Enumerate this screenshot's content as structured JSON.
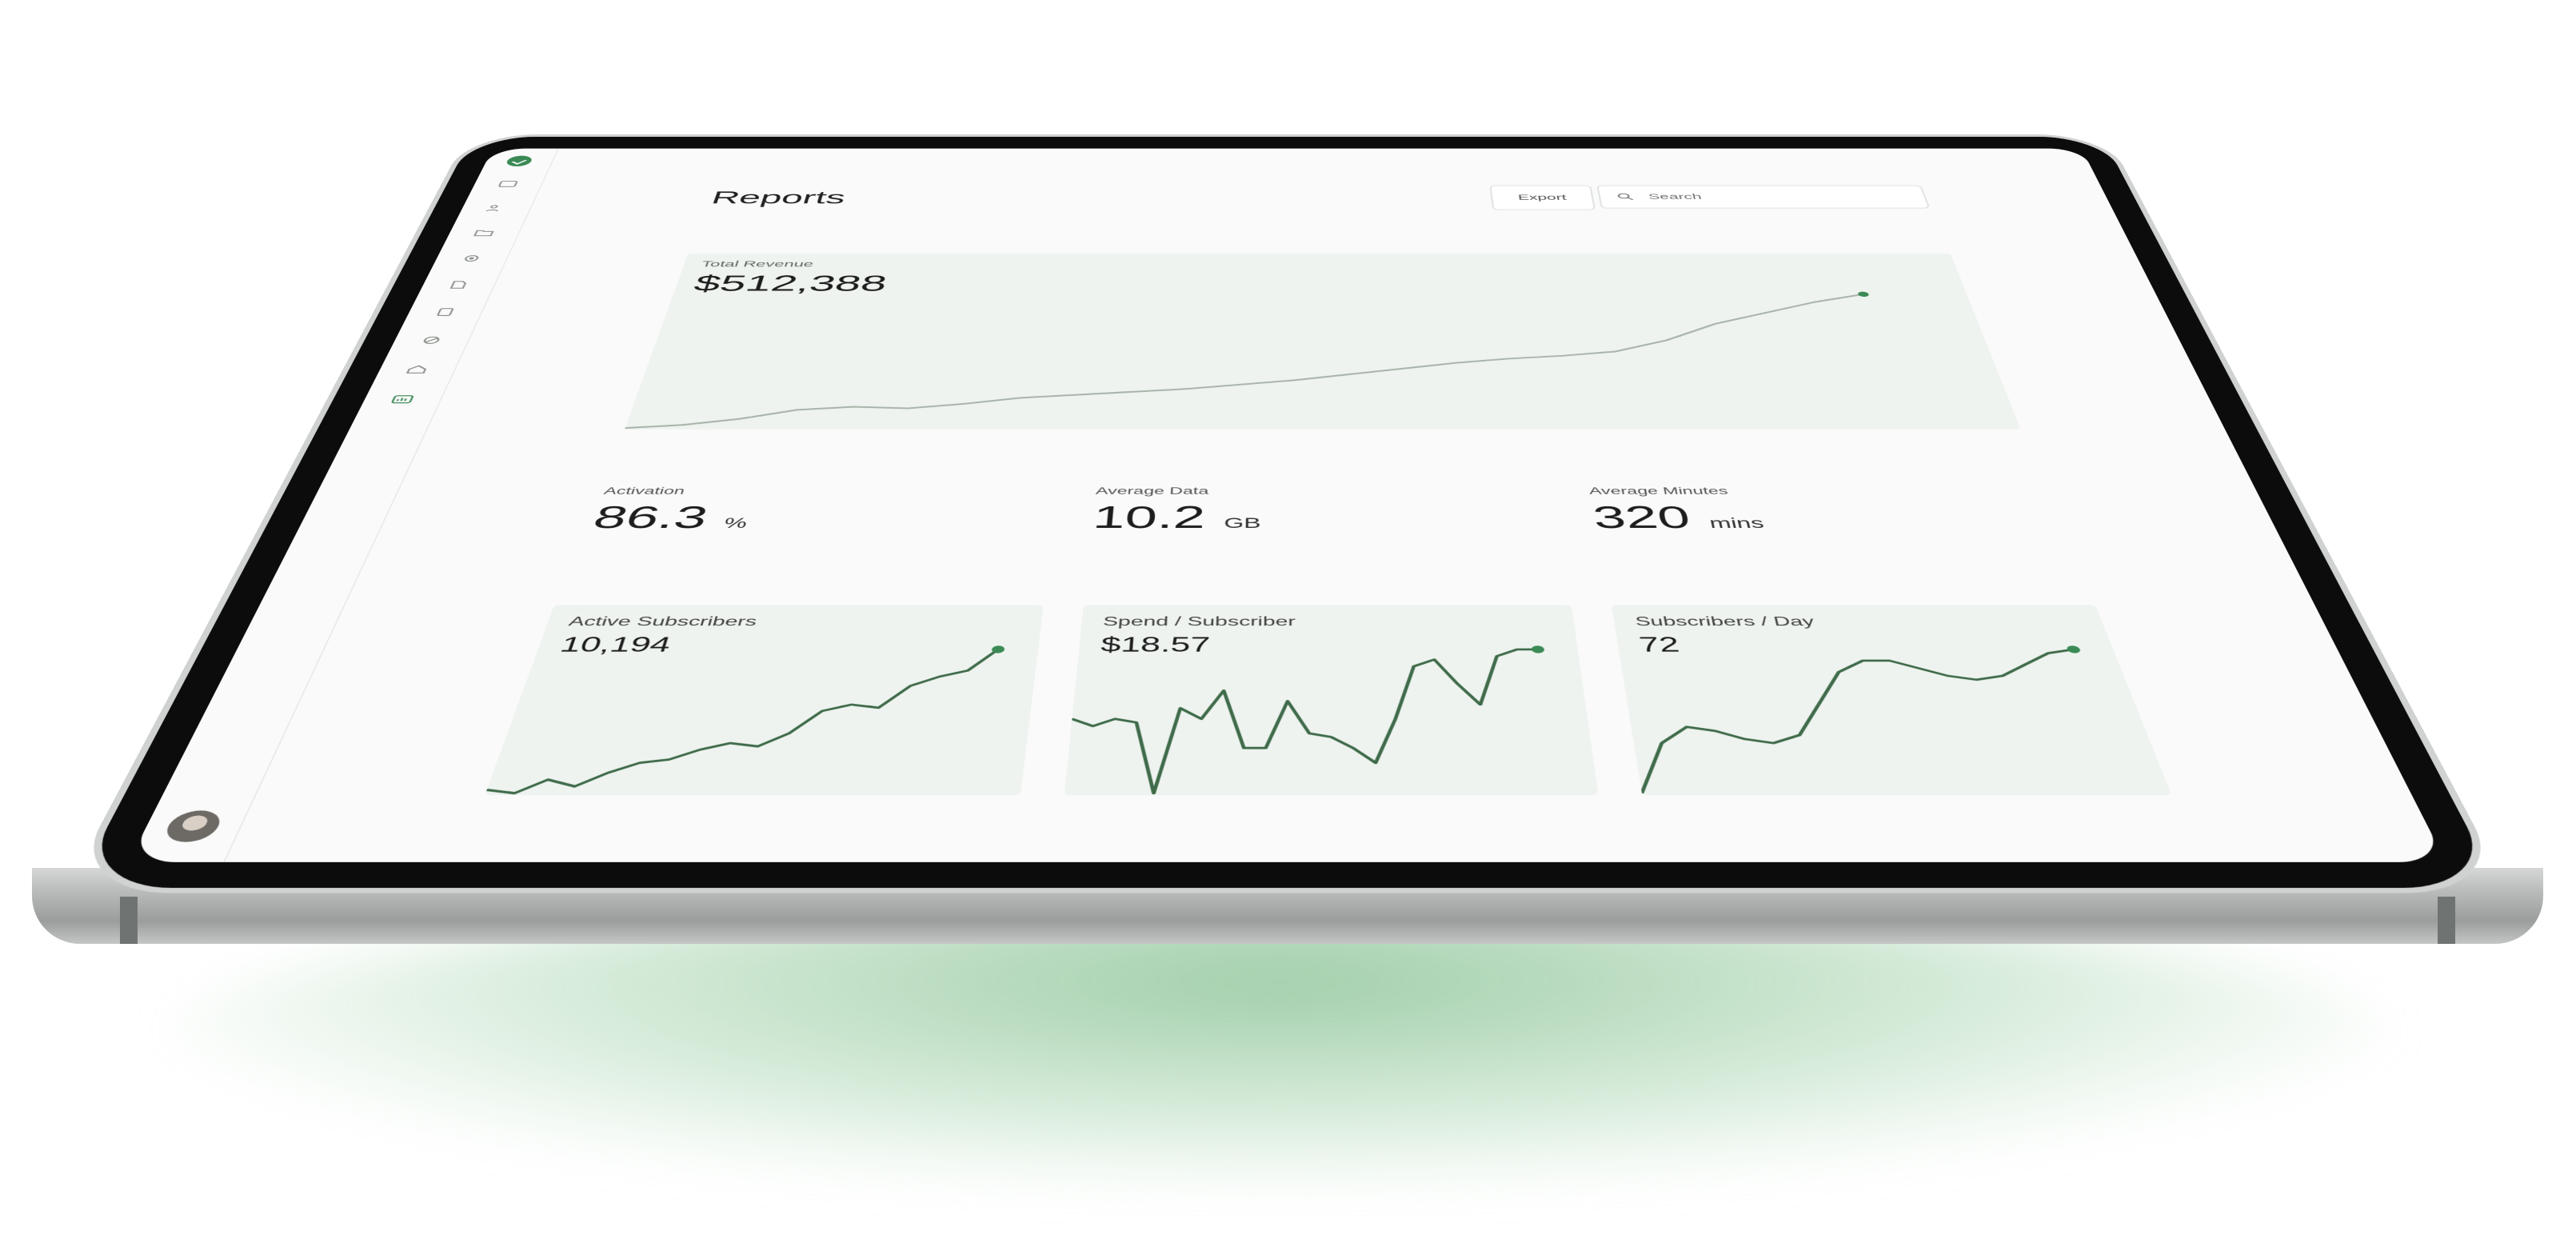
{
  "sidebar": {
    "logo_icon": "check-logo-icon",
    "items": [
      {
        "icon": "inbox-icon"
      },
      {
        "icon": "users-icon"
      },
      {
        "icon": "folder-icon"
      },
      {
        "icon": "settings-icon"
      },
      {
        "icon": "document-icon"
      },
      {
        "icon": "file-icon"
      },
      {
        "icon": "globe-icon"
      },
      {
        "icon": "home-icon"
      },
      {
        "icon": "chart-icon",
        "active": true
      }
    ],
    "avatar_icon": "user-avatar"
  },
  "header": {
    "title": "Reports",
    "export_label": "Export",
    "search_placeholder": "Search"
  },
  "colors": {
    "accent": "#3b8a55",
    "card_bg": "#eef3ef",
    "line_muted": "#a9b4aa",
    "line_dark": "#3f6b4a"
  },
  "revenue": {
    "label": "Total Revenue",
    "value": "$512,388"
  },
  "metrics": [
    {
      "label": "Activation",
      "value": "86.3",
      "unit": "%"
    },
    {
      "label": "Average Data",
      "value": "10.2",
      "unit": "GB"
    },
    {
      "label": "Average Minutes",
      "value": "320",
      "unit": "mins"
    }
  ],
  "cards": [
    {
      "label": "Active Subscribers",
      "value": "10,194"
    },
    {
      "label": "Spend / Subscriber",
      "value": "$18.57"
    },
    {
      "label": "Subscribers / Day",
      "value": "72"
    }
  ],
  "chart_data": [
    {
      "type": "line",
      "name_ref": "revenue",
      "values": [
        0,
        1,
        3,
        6,
        7,
        6.5,
        8,
        10,
        11,
        12,
        13,
        14.5,
        16,
        18,
        20,
        22,
        23.5,
        24.5,
        26,
        30,
        36,
        40,
        44,
        47
      ]
    },
    {
      "type": "line",
      "name_ref": "active-subscribers",
      "values": [
        1,
        0,
        4,
        2,
        6,
        9,
        10,
        13,
        15,
        14,
        18,
        25,
        27,
        26,
        33,
        36,
        38,
        45
      ]
    },
    {
      "type": "line",
      "name_ref": "spend-per-subscriber",
      "values": [
        20,
        18,
        20,
        19,
        0,
        23,
        20,
        28,
        12,
        12,
        25,
        16,
        15,
        12,
        8,
        20,
        35,
        37,
        30,
        24,
        38,
        40,
        40
      ]
    },
    {
      "type": "line",
      "name_ref": "subscribers-per-day",
      "values": [
        0,
        12,
        16,
        15,
        13,
        12,
        14,
        22,
        30,
        33,
        33,
        31,
        29,
        28,
        29,
        32,
        35,
        36
      ]
    }
  ]
}
